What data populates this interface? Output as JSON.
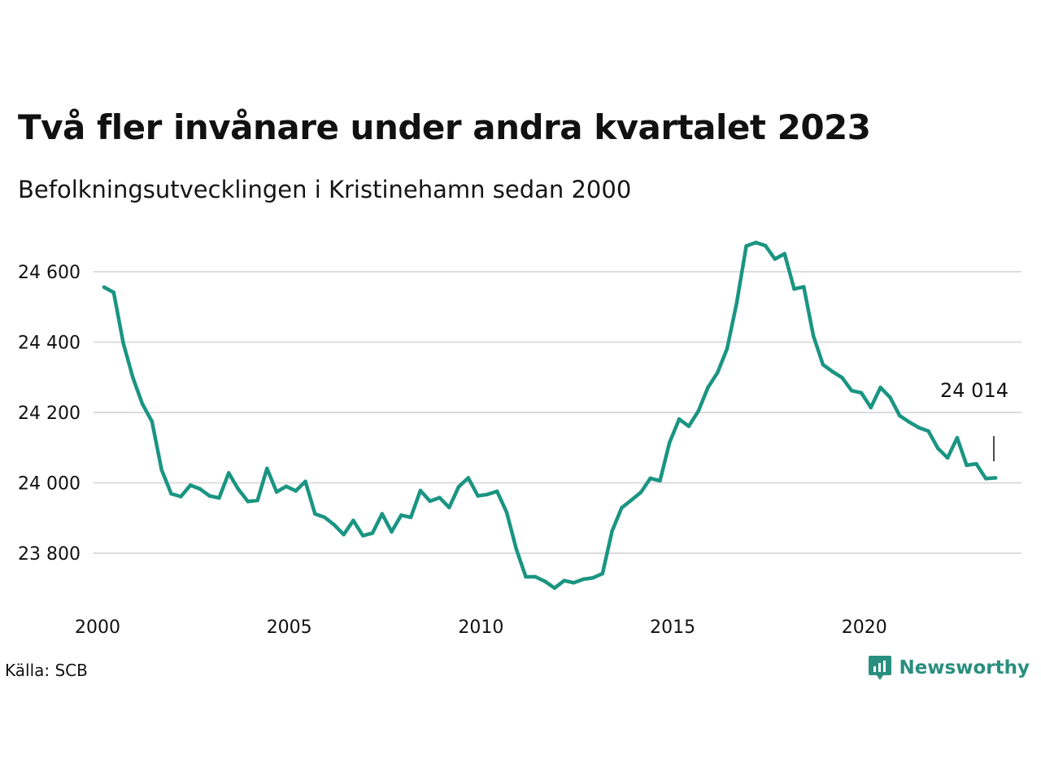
{
  "header": {
    "title": "Två fler invånare under andra kvartalet 2023",
    "subtitle": "Befolkningsutvecklingen i Kristinehamn sedan 2000"
  },
  "footer": {
    "source": "Källa: SCB",
    "brand": "Newsworthy"
  },
  "colors": {
    "line": "#1a9582",
    "brand": "#2a8f7f",
    "grid": "#dcdcdc"
  },
  "chart_data": {
    "type": "line",
    "title": "Två fler invånare under andra kvartalet 2023",
    "subtitle": "Befolkningsutvecklingen i Kristinehamn sedan 2000",
    "xlabel": "",
    "ylabel": "",
    "x_ticks": [
      "2000",
      "2005",
      "2010",
      "2015",
      "2020"
    ],
    "y_ticks": [
      "23 800",
      "24 000",
      "24 200",
      "24 400",
      "24 600"
    ],
    "xlim": [
      2000,
      2024.6
    ],
    "ylim": [
      23680,
      24700
    ],
    "grid": true,
    "annotation": {
      "label": "24 014",
      "x": 2023.25
    },
    "series": [
      {
        "x": [
          2000,
          2000.25,
          2000.5,
          2000.75,
          2001,
          2001.25,
          2001.5,
          2001.75,
          2002,
          2002.25,
          2002.5,
          2002.75,
          2003,
          2003.25,
          2003.5,
          2003.75,
          2004,
          2004.25,
          2004.5,
          2004.75,
          2005,
          2005.25,
          2005.5,
          2005.75,
          2006,
          2006.25,
          2006.5,
          2006.75,
          2007,
          2007.25,
          2007.5,
          2007.75,
          2008,
          2008.25,
          2008.5,
          2008.75,
          2009,
          2009.25,
          2009.5,
          2009.75,
          2010,
          2010.25,
          2010.5,
          2010.75,
          2011,
          2011.25,
          2011.5,
          2011.75,
          2012,
          2012.25,
          2012.5,
          2012.75,
          2013,
          2013.25,
          2013.5,
          2013.75,
          2014,
          2014.25,
          2014.5,
          2014.75,
          2015,
          2015.25,
          2015.5,
          2015.75,
          2016,
          2016.25,
          2016.5,
          2016.75,
          2017,
          2017.25,
          2017.5,
          2017.75,
          2018,
          2018.25,
          2018.5,
          2018.75,
          2019,
          2019.25,
          2019.5,
          2019.75,
          2020,
          2020.25,
          2020.5,
          2020.75,
          2021,
          2021.25,
          2021.5,
          2021.75,
          2022,
          2022.25,
          2022.5,
          2022.75,
          2023,
          2023.25
        ],
        "values": [
          24556,
          24541,
          24397,
          24299,
          24224,
          24174,
          24037,
          23969,
          23961,
          23993,
          23983,
          23963,
          23957,
          24028,
          23982,
          23947,
          23950,
          24041,
          23974,
          23990,
          23977,
          24004,
          23912,
          23902,
          23881,
          23853,
          23893,
          23850,
          23857,
          23912,
          23861,
          23908,
          23902,
          23978,
          23948,
          23958,
          23930,
          23989,
          24014,
          23963,
          23967,
          23976,
          23916,
          23812,
          23733,
          23733,
          23720,
          23701,
          23722,
          23716,
          23726,
          23730,
          23742,
          23863,
          23929,
          23951,
          23973,
          24013,
          24006,
          24115,
          24181,
          24161,
          24204,
          24271,
          24313,
          24381,
          24511,
          24673,
          24683,
          24674,
          24636,
          24651,
          24551,
          24557,
          24418,
          24336,
          24316,
          24299,
          24262,
          24256,
          24214,
          24271,
          24243,
          24191,
          24173,
          24157,
          24147,
          24098,
          24071,
          24128,
          24050,
          24054,
          24012,
          24014
        ]
      }
    ]
  }
}
